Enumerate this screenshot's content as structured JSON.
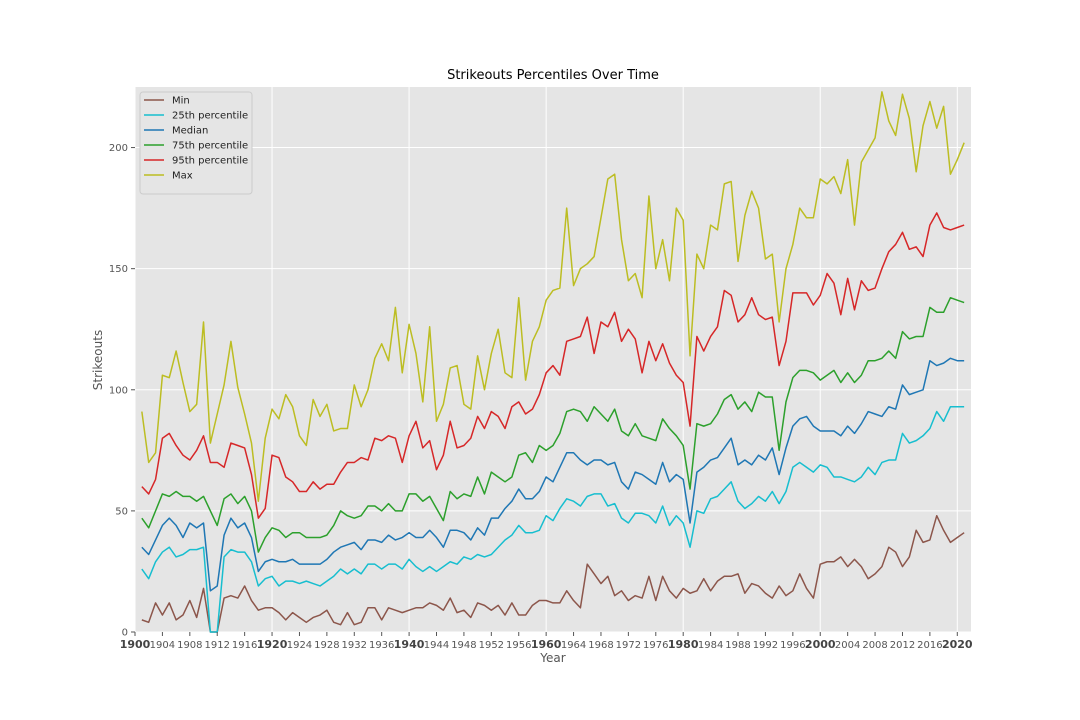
{
  "chart_data": {
    "type": "line",
    "title": "Strikeouts Percentiles Over Time",
    "xlabel": "Year",
    "ylabel": "Strikeouts",
    "xlim": [
      1900,
      2022
    ],
    "ylim": [
      0,
      225
    ],
    "yticks": [
      0,
      50,
      100,
      150,
      200
    ],
    "xticks": [
      1900,
      1904,
      1908,
      1912,
      1916,
      1920,
      1924,
      1928,
      1932,
      1936,
      1940,
      1944,
      1948,
      1952,
      1956,
      1960,
      1964,
      1968,
      1972,
      1976,
      1980,
      1984,
      1988,
      1992,
      1996,
      2000,
      2004,
      2008,
      2012,
      2016,
      2020
    ],
    "xticks_major": [
      1900,
      1920,
      1940,
      1960,
      1980,
      2000,
      2020
    ],
    "grid": true,
    "legend_position": "top-left",
    "x_start": 1901,
    "x_end": 2021,
    "series": [
      {
        "name": "Min",
        "color": "#8c564b",
        "values": [
          5,
          4,
          12,
          7,
          12,
          5,
          7,
          13,
          6,
          18,
          0,
          0,
          14,
          15,
          14,
          19,
          13,
          9,
          10,
          10,
          8,
          5,
          8,
          6,
          4,
          6,
          7,
          9,
          4,
          3,
          8,
          3,
          4,
          10,
          10,
          5,
          10,
          9,
          8,
          9,
          10,
          10,
          12,
          11,
          9,
          14,
          8,
          9,
          6,
          12,
          11,
          9,
          11,
          7,
          12,
          7,
          7,
          11,
          13,
          13,
          12,
          12,
          17,
          13,
          10,
          28,
          24,
          20,
          23,
          15,
          17,
          13,
          15,
          14,
          23,
          13,
          23,
          17,
          14,
          18,
          16,
          17,
          22,
          17,
          21,
          23,
          23,
          24,
          16,
          20,
          19,
          16,
          14,
          19,
          15,
          17,
          24,
          18,
          14,
          28,
          29,
          29,
          31,
          27,
          30,
          27,
          22,
          24,
          27,
          35,
          33,
          27,
          31,
          42,
          37,
          38,
          48,
          42,
          37,
          39,
          41
        ]
      },
      {
        "name": "25th percentile",
        "color": "#17becf",
        "values": [
          26,
          22,
          29,
          33,
          35,
          31,
          32,
          34,
          34,
          35,
          0,
          0,
          31,
          34,
          33,
          33,
          29,
          19,
          22,
          23,
          19,
          21,
          21,
          20,
          21,
          20,
          19,
          21,
          23,
          26,
          24,
          26,
          24,
          28,
          28,
          26,
          28,
          28,
          26,
          30,
          27,
          25,
          27,
          25,
          27,
          29,
          28,
          31,
          30,
          32,
          31,
          32,
          35,
          38,
          40,
          44,
          41,
          41,
          42,
          48,
          46,
          51,
          55,
          54,
          52,
          56,
          57,
          57,
          52,
          53,
          47,
          45,
          49,
          49,
          48,
          45,
          52,
          44,
          48,
          45,
          35,
          50,
          49,
          55,
          56,
          59,
          62,
          54,
          51,
          53,
          56,
          54,
          58,
          53,
          58,
          68,
          70,
          68,
          66,
          69,
          68,
          64,
          64,
          63,
          62,
          64,
          68,
          65,
          70,
          71,
          71,
          82,
          78,
          79,
          81,
          84,
          91,
          87,
          93,
          93,
          93
        ]
      },
      {
        "name": "Median",
        "color": "#1f77b4",
        "values": [
          35,
          32,
          38,
          44,
          47,
          44,
          39,
          45,
          43,
          45,
          17,
          19,
          40,
          47,
          43,
          45,
          39,
          25,
          29,
          30,
          29,
          29,
          30,
          28,
          28,
          28,
          28,
          30,
          33,
          35,
          36,
          37,
          34,
          38,
          38,
          37,
          40,
          38,
          39,
          41,
          39,
          39,
          42,
          39,
          35,
          42,
          42,
          41,
          38,
          43,
          40,
          47,
          47,
          51,
          54,
          59,
          55,
          55,
          58,
          64,
          62,
          68,
          74,
          74,
          71,
          69,
          71,
          71,
          69,
          70,
          62,
          59,
          66,
          65,
          63,
          61,
          70,
          62,
          65,
          63,
          45,
          66,
          68,
          71,
          72,
          76,
          80,
          69,
          71,
          69,
          73,
          71,
          76,
          65,
          76,
          85,
          88,
          89,
          85,
          83,
          83,
          83,
          81,
          85,
          82,
          86,
          91,
          90,
          89,
          93,
          92,
          102,
          98,
          99,
          100,
          112,
          110,
          111,
          113,
          112,
          112
        ]
      },
      {
        "name": "75th percentile",
        "color": "#2ca02c",
        "values": [
          47,
          43,
          50,
          57,
          56,
          58,
          56,
          56,
          54,
          56,
          50,
          44,
          55,
          57,
          53,
          56,
          50,
          33,
          39,
          43,
          42,
          39,
          41,
          41,
          39,
          39,
          39,
          40,
          44,
          50,
          48,
          47,
          48,
          52,
          52,
          50,
          53,
          50,
          50,
          57,
          57,
          54,
          56,
          51,
          46,
          58,
          55,
          57,
          56,
          64,
          57,
          66,
          64,
          62,
          64,
          73,
          74,
          70,
          77,
          75,
          77,
          82,
          91,
          92,
          91,
          87,
          93,
          90,
          87,
          92,
          83,
          81,
          86,
          81,
          80,
          79,
          88,
          84,
          81,
          77,
          59,
          86,
          85,
          86,
          90,
          96,
          98,
          92,
          95,
          91,
          99,
          97,
          97,
          75,
          95,
          105,
          108,
          108,
          107,
          104,
          106,
          108,
          103,
          107,
          103,
          106,
          112,
          112,
          113,
          116,
          113,
          124,
          121,
          122,
          122,
          134,
          132,
          132,
          138,
          137,
          136
        ]
      },
      {
        "name": "95th percentile",
        "color": "#d62728",
        "values": [
          60,
          57,
          63,
          80,
          82,
          77,
          73,
          71,
          75,
          81,
          70,
          70,
          68,
          78,
          77,
          76,
          65,
          47,
          51,
          73,
          72,
          64,
          62,
          58,
          58,
          62,
          59,
          61,
          61,
          66,
          70,
          70,
          72,
          71,
          80,
          79,
          81,
          80,
          70,
          81,
          87,
          76,
          79,
          67,
          73,
          87,
          76,
          77,
          80,
          89,
          84,
          91,
          89,
          84,
          93,
          95,
          90,
          92,
          98,
          107,
          110,
          106,
          120,
          121,
          122,
          130,
          115,
          128,
          126,
          132,
          120,
          125,
          121,
          107,
          120,
          112,
          119,
          111,
          106,
          103,
          85,
          122,
          116,
          122,
          126,
          141,
          139,
          128,
          131,
          138,
          131,
          129,
          130,
          110,
          120,
          140,
          140,
          140,
          135,
          139,
          148,
          144,
          131,
          146,
          133,
          145,
          141,
          142,
          150,
          157,
          160,
          165,
          158,
          159,
          155,
          168,
          173,
          167,
          166,
          167,
          168
        ]
      },
      {
        "name": "Max",
        "color": "#bcbd22",
        "values": [
          91,
          70,
          74,
          106,
          105,
          116,
          103,
          91,
          94,
          128,
          78,
          90,
          102,
          120,
          101,
          90,
          78,
          54,
          80,
          92,
          88,
          98,
          93,
          81,
          77,
          96,
          89,
          94,
          83,
          84,
          84,
          102,
          93,
          100,
          113,
          119,
          112,
          134,
          107,
          127,
          115,
          95,
          126,
          87,
          94,
          109,
          110,
          94,
          92,
          114,
          100,
          115,
          125,
          107,
          105,
          138,
          104,
          120,
          126,
          137,
          141,
          142,
          175,
          143,
          150,
          152,
          155,
          171,
          187,
          189,
          162,
          145,
          148,
          138,
          180,
          150,
          162,
          145,
          175,
          170,
          114,
          156,
          150,
          168,
          166,
          185,
          186,
          153,
          172,
          182,
          175,
          154,
          156,
          128,
          150,
          160,
          175,
          171,
          171,
          187,
          185,
          188,
          181,
          195,
          168,
          194,
          199,
          204,
          223,
          211,
          205,
          222,
          212,
          190,
          209,
          219,
          208,
          217,
          189,
          195,
          202
        ]
      }
    ]
  }
}
